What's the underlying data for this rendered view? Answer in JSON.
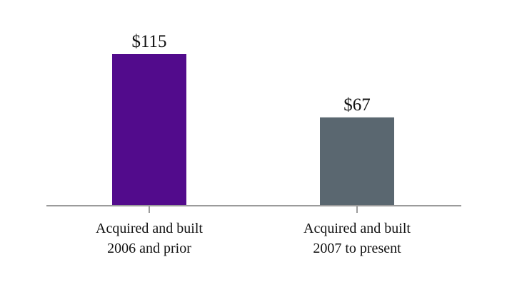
{
  "chart_data": {
    "type": "bar",
    "categories": [
      [
        "Acquired and built",
        "2006 and prior"
      ],
      [
        "Acquired and built",
        "2007 to present"
      ]
    ],
    "values": [
      115,
      67
    ],
    "value_labels": [
      "$115",
      "$67"
    ],
    "colors": [
      "#520b8c",
      "#5a6770"
    ],
    "axis_color": "#9b9b9b",
    "ylim": [
      0,
      115
    ],
    "grid": false,
    "legend": "none",
    "title": "",
    "xlabel": "",
    "ylabel": ""
  }
}
